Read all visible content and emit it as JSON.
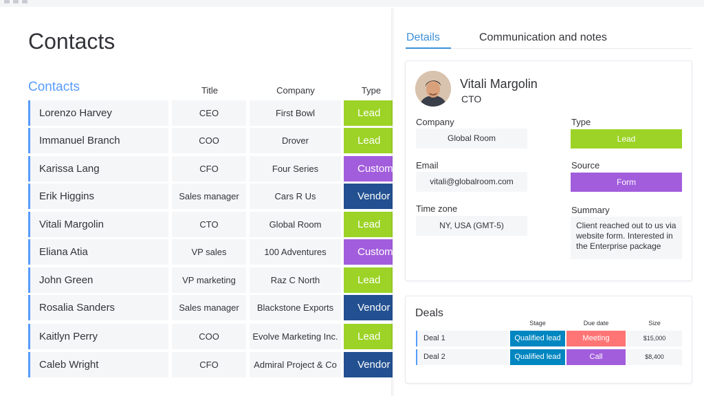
{
  "page_title": "Contacts",
  "group_title": "Contacts",
  "columns": {
    "title": "Title",
    "company": "Company",
    "type": "Type"
  },
  "type_colors": {
    "Lead": "#9cd326",
    "Customer": "#a25ddc",
    "Vendor": "#225091"
  },
  "contacts": [
    {
      "name": "Lorenzo Harvey",
      "title": "CEO",
      "company": "First Bowl",
      "type": "Lead"
    },
    {
      "name": "Immanuel Branch",
      "title": "COO",
      "company": "Drover",
      "type": "Lead"
    },
    {
      "name": "Karissa Lang",
      "title": "CFO",
      "company": "Four Series",
      "type": "Customer"
    },
    {
      "name": "Erik Higgins",
      "title": "Sales manager",
      "company": "Cars R Us",
      "type": "Vendor"
    },
    {
      "name": "Vitali Margolin",
      "title": "CTO",
      "company": "Global Room",
      "type": "Lead"
    },
    {
      "name": "Eliana Atia",
      "title": "VP sales",
      "company": "100 Adventures",
      "type": "Customer"
    },
    {
      "name": "John Green",
      "title": "VP marketing",
      "company": "Raz C North",
      "type": "Lead"
    },
    {
      "name": "Rosalia Sanders",
      "title": "Sales manager",
      "company": "Blackstone Exports",
      "type": "Vendor"
    },
    {
      "name": "Kaitlyn Perry",
      "title": "COO",
      "company": "Evolve Marketing Inc.",
      "type": "Lead"
    },
    {
      "name": "Caleb Wright",
      "title": "CFO",
      "company": "Admiral Project & Co",
      "type": "Vendor"
    }
  ],
  "tabs": {
    "details": "Details",
    "communication": "Communication and notes"
  },
  "person": {
    "name": "Vitali Margolin",
    "title": "CTO"
  },
  "details": {
    "company_label": "Company",
    "company": "Global Room",
    "email_label": "Email",
    "email": "vitali@globalroom.com",
    "timezone_label": "Time zone",
    "timezone": "NY, USA (GMT-5)",
    "type_label": "Type",
    "type": "Lead",
    "type_color": "#9cd326",
    "source_label": "Source",
    "source": "Form",
    "source_color": "#a25ddc",
    "summary_label": "Summary",
    "summary": "Client reached out to us via website form. Interested in the Enterprise package"
  },
  "deals": {
    "title": "Deals",
    "headers": {
      "stage": "Stage",
      "due": "Due date",
      "size": "Size"
    },
    "rows": [
      {
        "name": "Deal 1",
        "stage": "Qualified lead",
        "stage_color": "#0086c0",
        "due": "Meeting",
        "due_color": "#ff7575",
        "size": "$15,000"
      },
      {
        "name": "Deal 2",
        "stage": "Qualified lead",
        "stage_color": "#0086c0",
        "due": "Call",
        "due_color": "#a25ddc",
        "size": "$8,400"
      }
    ]
  }
}
